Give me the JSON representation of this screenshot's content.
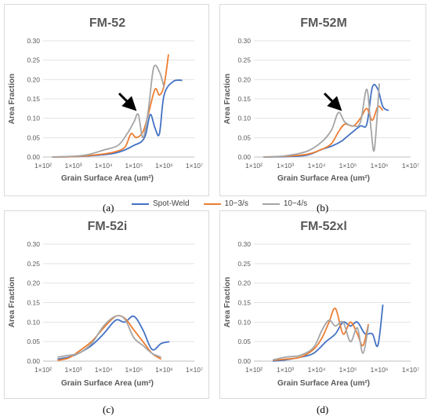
{
  "legend": {
    "items": [
      {
        "label": "Spot-Weld",
        "color": "#4472c4"
      },
      {
        "label": "10−3/s",
        "color": "#ed7d31"
      },
      {
        "label": "10−4/s",
        "color": "#a5a5a5"
      }
    ]
  },
  "captions": {
    "a": "(a)",
    "b": "(b)",
    "c": "(c)",
    "d": "(d)"
  },
  "chart_data": [
    {
      "type": "line",
      "title": "FM-52",
      "xlabel": "Grain Surface Area (um²)",
      "ylabel": "Area Fraction",
      "xscale": "log",
      "xlim": [
        100,
        10000000
      ],
      "ylim": [
        0,
        0.3
      ],
      "xticks": [
        "1×10²",
        "1×10³",
        "1×10⁴",
        "1×10⁵",
        "1×10⁶",
        "1×10⁷"
      ],
      "yticks": [
        "0.00",
        "0.05",
        "0.10",
        "0.15",
        "0.20",
        "0.25",
        "0.30"
      ],
      "grid": true,
      "annotations": [
        "arrow pointing at 10−4/s peak near 1×10⁵"
      ],
      "series": [
        {
          "name": "Spot-Weld",
          "color": "#4472c4",
          "x": [
            200,
            1000,
            5000,
            20000,
            50000,
            100000,
            180000,
            250000,
            350000,
            500000,
            700000,
            1000000,
            2000000,
            4000000
          ],
          "y": [
            0.0,
            0.001,
            0.004,
            0.009,
            0.018,
            0.03,
            0.04,
            0.06,
            0.11,
            0.075,
            0.06,
            0.16,
            0.195,
            0.198
          ]
        },
        {
          "name": "10−3/s",
          "color": "#ed7d31",
          "x": [
            200,
            1000,
            5000,
            20000,
            50000,
            80000,
            120000,
            200000,
            300000,
            500000,
            700000,
            1000000,
            1400000
          ],
          "y": [
            0.0,
            0.001,
            0.005,
            0.012,
            0.025,
            0.06,
            0.05,
            0.065,
            0.11,
            0.175,
            0.16,
            0.185,
            0.265
          ]
        },
        {
          "name": "10−4/s",
          "color": "#a5a5a5",
          "x": [
            200,
            1000,
            3000,
            10000,
            30000,
            60000,
            100000,
            140000,
            200000,
            300000,
            450000,
            700000,
            1000000
          ],
          "y": [
            0.0,
            0.002,
            0.006,
            0.018,
            0.03,
            0.06,
            0.09,
            0.11,
            0.05,
            0.12,
            0.23,
            0.22,
            0.18
          ]
        }
      ]
    },
    {
      "type": "line",
      "title": "FM-52M",
      "xlabel": "Grain Surface Area (um²)",
      "ylabel": "Area Fraction",
      "xscale": "log",
      "xlim": [
        100,
        10000000
      ],
      "ylim": [
        0,
        0.3
      ],
      "xticks": [
        "1×10²",
        "1×10³",
        "1×10⁴",
        "1×10⁵",
        "1×10⁶",
        "1×10⁷"
      ],
      "yticks": [
        "0.00",
        "0.05",
        "0.10",
        "0.15",
        "0.20",
        "0.25",
        "0.30"
      ],
      "grid": true,
      "annotations": [
        "arrow pointing at 10−4/s peak near 5×10⁴"
      ],
      "series": [
        {
          "name": "Spot-Weld",
          "color": "#4472c4",
          "x": [
            200,
            1000,
            5000,
            15000,
            30000,
            60000,
            120000,
            250000,
            400000,
            600000,
            900000,
            1300000,
            2000000
          ],
          "y": [
            0.0,
            0.001,
            0.005,
            0.02,
            0.028,
            0.04,
            0.06,
            0.08,
            0.085,
            0.18,
            0.175,
            0.13,
            0.12
          ]
        },
        {
          "name": "10−3/s",
          "color": "#ed7d31",
          "x": [
            200,
            1000,
            5000,
            15000,
            30000,
            50000,
            80000,
            150000,
            250000,
            400000,
            600000,
            900000,
            1300000
          ],
          "y": [
            0.0,
            0.002,
            0.007,
            0.02,
            0.035,
            0.065,
            0.085,
            0.08,
            0.1,
            0.125,
            0.095,
            0.13,
            0.12
          ]
        },
        {
          "name": "10−4/s",
          "color": "#a5a5a5",
          "x": [
            200,
            1000,
            5000,
            15000,
            30000,
            50000,
            80000,
            150000,
            250000,
            400000,
            550000,
            700000,
            1000000
          ],
          "y": [
            0.0,
            0.003,
            0.015,
            0.04,
            0.07,
            0.115,
            0.09,
            0.08,
            0.09,
            0.175,
            0.07,
            0.02,
            0.19
          ]
        }
      ]
    },
    {
      "type": "line",
      "title": "FM-52i",
      "xlabel": "Grain Surface Area (um²)",
      "ylabel": "Area Fraction",
      "xscale": "log",
      "xlim": [
        100,
        10000000
      ],
      "ylim": [
        0,
        0.3
      ],
      "xticks": [
        "1×10²",
        "1×10³",
        "1×10⁴",
        "1×10⁵",
        "1×10⁶",
        "1×10⁷"
      ],
      "yticks": [
        "0.00",
        "0.05",
        "0.10",
        "0.15",
        "0.20",
        "0.25",
        "0.30"
      ],
      "grid": true,
      "series": [
        {
          "name": "Spot-Weld",
          "color": "#4472c4",
          "x": [
            300,
            700,
            1500,
            4000,
            10000,
            25000,
            50000,
            100000,
            200000,
            400000,
            800000,
            1500000
          ],
          "y": [
            0.005,
            0.01,
            0.02,
            0.04,
            0.07,
            0.105,
            0.1,
            0.115,
            0.08,
            0.03,
            0.045,
            0.05
          ]
        },
        {
          "name": "10−3/s",
          "color": "#ed7d31",
          "x": [
            300,
            700,
            1500,
            4000,
            10000,
            25000,
            50000,
            100000,
            200000,
            400000,
            800000
          ],
          "y": [
            0.002,
            0.008,
            0.025,
            0.05,
            0.085,
            0.115,
            0.11,
            0.08,
            0.05,
            0.02,
            0.005
          ]
        },
        {
          "name": "10−4/s",
          "color": "#a5a5a5",
          "x": [
            300,
            700,
            1500,
            4000,
            10000,
            25000,
            50000,
            100000,
            200000,
            400000,
            800000
          ],
          "y": [
            0.01,
            0.015,
            0.02,
            0.045,
            0.09,
            0.115,
            0.108,
            0.06,
            0.04,
            0.02,
            0.01
          ]
        }
      ]
    },
    {
      "type": "line",
      "title": "FM-52xl",
      "xlabel": "Grain Surface Area (um²)",
      "ylabel": "Area Fraction",
      "xscale": "log",
      "xlim": [
        100,
        10000000
      ],
      "ylim": [
        0,
        0.3
      ],
      "xticks": [
        "1×10²",
        "1×10³",
        "1×10⁴",
        "1×10⁵",
        "1×10⁶",
        "1×10⁷"
      ],
      "yticks": [
        "0.00",
        "0.05",
        "0.10",
        "0.15",
        "0.20",
        "0.25",
        "0.30"
      ],
      "grid": true,
      "series": [
        {
          "name": "Spot-Weld",
          "color": "#4472c4",
          "x": [
            400,
            1000,
            3000,
            8000,
            20000,
            40000,
            70000,
            120000,
            200000,
            350000,
            600000,
            900000,
            1300000
          ],
          "y": [
            0.0,
            0.003,
            0.01,
            0.02,
            0.05,
            0.07,
            0.1,
            0.09,
            0.1,
            0.07,
            0.07,
            0.04,
            0.145
          ]
        },
        {
          "name": "10−3/s",
          "color": "#ed7d31",
          "x": [
            400,
            1000,
            3000,
            8000,
            15000,
            25000,
            40000,
            70000,
            120000,
            200000,
            300000,
            450000
          ],
          "y": [
            0.002,
            0.005,
            0.01,
            0.03,
            0.06,
            0.1,
            0.135,
            0.07,
            0.1,
            0.07,
            0.04,
            0.095
          ]
        },
        {
          "name": "10−4/s",
          "color": "#a5a5a5",
          "x": [
            400,
            1000,
            3000,
            8000,
            15000,
            25000,
            40000,
            70000,
            120000,
            200000,
            300000,
            450000
          ],
          "y": [
            0.003,
            0.01,
            0.015,
            0.035,
            0.08,
            0.105,
            0.09,
            0.1,
            0.05,
            0.085,
            0.02,
            0.09
          ]
        }
      ]
    }
  ]
}
